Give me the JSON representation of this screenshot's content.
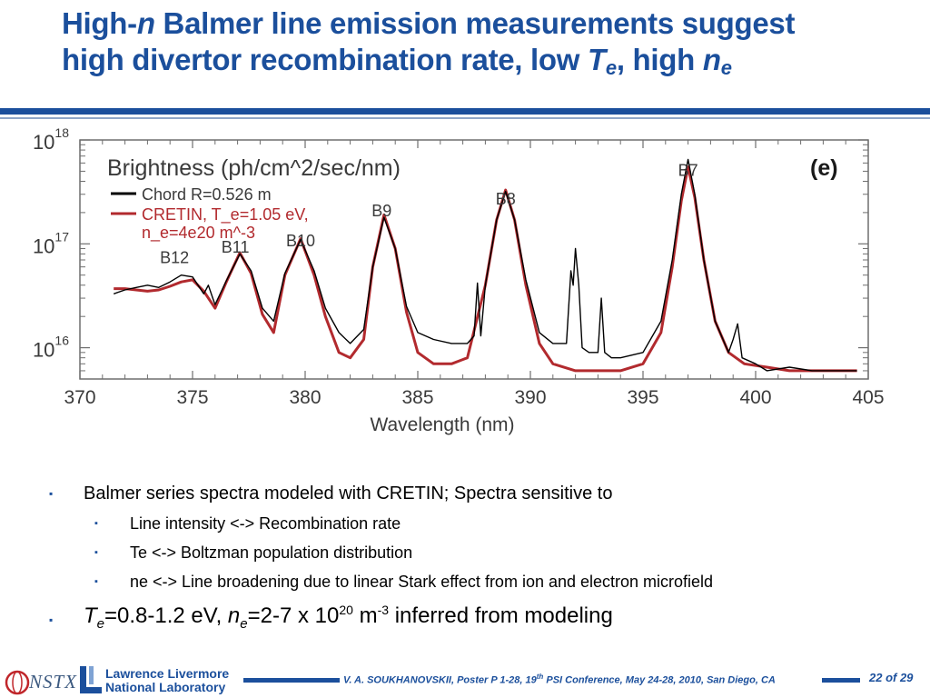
{
  "slide": {
    "title_line1_a": "High-",
    "title_line1_n": "n",
    "title_line1_b": " Balmer line emission measurements suggest",
    "title_line2_a": "high divertor recombination rate, low ",
    "title_line2_T": "T",
    "title_line2_e": "e",
    "title_line2_b": ", high ",
    "title_line2_n": "n",
    "title_line2_ne": "e",
    "accent_color": "#1b4f9c"
  },
  "bullets": {
    "b1": "Balmer series spectra modeled with CRETIN; Spectra sensitive to",
    "b1_sub": [
      "Line intensity <-> Recombination rate",
      "Te <-> Boltzman population distribution",
      "ne <-> Line broadening due to linear Stark effect from ion and electron microfield"
    ],
    "b2_T": "T",
    "b2_Te_sub": "e",
    "b2_part1": "=0.8-1.2 eV, ",
    "b2_n": "n",
    "b2_ne_sub": "e",
    "b2_part2": "=2-7 x 10",
    "b2_exp1": "20",
    "b2_part3": " m",
    "b2_exp2": "-3",
    "b2_part4": " inferred from modeling",
    "bullet_glyph": "▪"
  },
  "footer": {
    "citation_a": "V. A. SOUKHANOVSKII, Poster P 1-28, 19",
    "citation_sup": "th",
    "citation_b": " PSI Conference, May 24-28, 2010, San Diego, CA",
    "page": "22 of 29",
    "nstx_label": "NSTX",
    "lab_line1": "Lawrence Livermore",
    "lab_line2": "National Laboratory"
  },
  "chart_data": {
    "type": "line",
    "title": "Brightness (ph/cm^2/sec/nm)",
    "panel_label": "(e)",
    "xlabel": "Wavelength (nm)",
    "ylabel": "",
    "xlim": [
      370,
      405
    ],
    "ylim": [
      5000000000000000,
      1000000000000000000
    ],
    "y_scale": "log",
    "x_ticks": [
      370,
      375,
      380,
      385,
      390,
      395,
      400,
      405
    ],
    "y_ticks": [
      {
        "value": 10000000000000000,
        "base": "10",
        "exp": "16"
      },
      {
        "value": 100000000000000000,
        "base": "10",
        "exp": "17"
      },
      {
        "value": 1000000000000000000,
        "base": "10",
        "exp": "18"
      }
    ],
    "legend": {
      "placement": "top-left",
      "entries": [
        {
          "label": "Chord R=0.526 m",
          "color": "#000000"
        },
        {
          "label": "CRETIN, T_e=1.05 eV,",
          "label2": "n_e=4e20 m^-3",
          "color": "#b22a2e"
        }
      ]
    },
    "annotations": [
      {
        "text": "B12",
        "x": 374.2,
        "y": 65000000000000000
      },
      {
        "text": "B11",
        "x": 376.9,
        "y": 82000000000000000
      },
      {
        "text": "B10",
        "x": 379.8,
        "y": 95000000000000000
      },
      {
        "text": "B9",
        "x": 383.4,
        "y": 185000000000000000
      },
      {
        "text": "B8",
        "x": 388.9,
        "y": 240000000000000000
      },
      {
        "text": "B7",
        "x": 397.0,
        "y": 450000000000000000
      }
    ],
    "peaks": [
      {
        "line": "B12",
        "x": 375.0,
        "y": 45000000000000000
      },
      {
        "line": "B11",
        "x": 377.1,
        "y": 82000000000000000
      },
      {
        "line": "B10",
        "x": 379.8,
        "y": 112000000000000000
      },
      {
        "line": "B9",
        "x": 383.5,
        "y": 190000000000000000
      },
      {
        "line": "B8",
        "x": 388.9,
        "y": 330000000000000000
      },
      {
        "line": "B7",
        "x": 397.0,
        "y": 550000000000000000
      }
    ],
    "series": [
      {
        "name": "CRETIN, T_e=1.05 eV, n_e=4e20 m^-3",
        "color": "#b22a2e",
        "x": [
          371.5,
          372.0,
          372.5,
          373.0,
          373.5,
          374.0,
          374.5,
          375.0,
          375.5,
          376.0,
          376.5,
          377.1,
          377.6,
          378.1,
          378.6,
          379.1,
          379.8,
          380.4,
          380.9,
          381.5,
          382.0,
          382.6,
          383.0,
          383.5,
          384.0,
          384.5,
          385.0,
          385.7,
          386.5,
          387.2,
          388.0,
          388.5,
          388.9,
          389.3,
          389.8,
          390.4,
          391.0,
          392.0,
          393.0,
          394.0,
          395.0,
          395.8,
          396.3,
          396.7,
          397.0,
          397.3,
          397.7,
          398.2,
          398.8,
          399.5,
          400.5,
          401.5,
          402.5,
          403.5,
          404.5
        ],
        "y": [
          37000000000000000,
          37000000000000000,
          36000000000000000,
          35000000000000000,
          36000000000000000,
          39000000000000000,
          43000000000000000,
          45000000000000000,
          35000000000000000,
          24000000000000000,
          43000000000000000,
          82000000000000000,
          52000000000000000,
          21000000000000000,
          14000000000000000,
          50000000000000000,
          112000000000000000,
          50000000000000000,
          20000000000000000,
          9000000000000000,
          8000000000000000,
          12000000000000000,
          60000000000000000,
          190000000000000000,
          90000000000000000,
          22000000000000000,
          9000000000000000,
          7000000000000000,
          7000000000000000,
          8000000000000000,
          40000000000000000,
          170000000000000000,
          330000000000000000,
          170000000000000000,
          40000000000000000,
          11000000000000000,
          7000000000000000,
          6000000000000000,
          6000000000000000,
          6000000000000000,
          7000000000000000,
          14000000000000000,
          60000000000000000,
          260000000000000000,
          550000000000000000,
          280000000000000000,
          70000000000000000,
          18000000000000000,
          9000000000000000,
          7000000000000000,
          6500000000000000,
          6000000000000000,
          6000000000000000,
          6000000000000000,
          6000000000000000
        ]
      },
      {
        "name": "Chord R=0.526 m",
        "color": "#000000",
        "x": [
          371.5,
          372.0,
          372.5,
          373.0,
          373.5,
          374.0,
          374.5,
          375.0,
          375.5,
          375.7,
          375.9,
          376.0,
          376.5,
          377.1,
          377.6,
          378.1,
          378.6,
          379.1,
          379.8,
          380.4,
          380.9,
          381.5,
          382.0,
          382.6,
          383.0,
          383.5,
          384.0,
          384.5,
          385.0,
          385.7,
          386.5,
          387.2,
          387.5,
          387.65,
          387.8,
          388.0,
          388.5,
          388.9,
          389.3,
          389.8,
          390.4,
          391.0,
          391.6,
          391.8,
          391.9,
          392.0,
          392.15,
          392.3,
          392.6,
          393.0,
          393.15,
          393.3,
          393.6,
          394.0,
          395.0,
          395.8,
          396.3,
          396.7,
          397.0,
          397.3,
          397.7,
          398.2,
          398.8,
          399.0,
          399.2,
          399.4,
          400.0,
          400.5,
          401.5,
          402.5,
          403.5,
          404.5
        ],
        "y": [
          33000000000000000,
          36000000000000000,
          38000000000000000,
          40000000000000000,
          38000000000000000,
          43000000000000000,
          50000000000000000,
          48000000000000000,
          33000000000000000,
          40000000000000000,
          30000000000000000,
          26000000000000000,
          44000000000000000,
          80000000000000000,
          55000000000000000,
          24000000000000000,
          18000000000000000,
          52000000000000000,
          110000000000000000,
          55000000000000000,
          24000000000000000,
          14000000000000000,
          11000000000000000,
          15000000000000000,
          60000000000000000,
          180000000000000000,
          90000000000000000,
          25000000000000000,
          14000000000000000,
          12000000000000000,
          11000000000000000,
          11000000000000000,
          13000000000000000,
          42000000000000000,
          13000000000000000,
          40000000000000000,
          170000000000000000,
          320000000000000000,
          170000000000000000,
          45000000000000000,
          14000000000000000,
          11000000000000000,
          11000000000000000,
          55000000000000000,
          40000000000000000,
          90000000000000000,
          40000000000000000,
          10000000000000000,
          9000000000000000,
          9000000000000000,
          30000000000000000,
          9000000000000000,
          8000000000000000,
          8000000000000000,
          9000000000000000,
          18000000000000000,
          70000000000000000,
          300000000000000000,
          650000000000000000,
          300000000000000000,
          70000000000000000,
          18000000000000000,
          9000000000000000,
          12000000000000000,
          17000000000000000,
          8000000000000000,
          7000000000000000,
          6000000000000000,
          6500000000000000,
          6000000000000000,
          6000000000000000,
          6000000000000000
        ]
      }
    ]
  }
}
